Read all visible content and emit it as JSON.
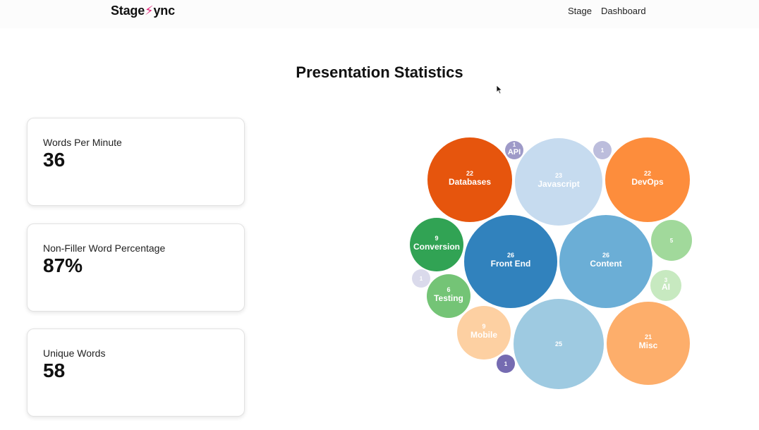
{
  "nav": {
    "logo_prefix": "Stage",
    "logo_suffix": "ync",
    "links": [
      "Stage",
      "Dashboard"
    ]
  },
  "page_title": "Presentation Statistics",
  "stats": [
    {
      "label": "Words Per Minute",
      "value": "36"
    },
    {
      "label": "Non-Filler Word Percentage",
      "value": "87%"
    },
    {
      "label": "Unique Words",
      "value": "58"
    }
  ],
  "chart_data": {
    "type": "bubble",
    "bubbles": [
      {
        "name": "Databases",
        "value": 22,
        "color": "#e6550d"
      },
      {
        "name": "API",
        "value": 1,
        "color": "#9e9ac8"
      },
      {
        "name": "Javascript",
        "value": 23,
        "color": "#c6dbef"
      },
      {
        "name": "",
        "value": 1,
        "color": "#bcbddc"
      },
      {
        "name": "DevOps",
        "value": 22,
        "color": "#fd8d3c"
      },
      {
        "name": "Conversion",
        "value": 9,
        "color": "#31a354"
      },
      {
        "name": "Front End",
        "value": 26,
        "color": "#3182bd"
      },
      {
        "name": "Content",
        "value": 26,
        "color": "#6baed6"
      },
      {
        "name": "",
        "value": 5,
        "color": "#a1d99b"
      },
      {
        "name": "",
        "value": 1,
        "color": "#dadaeb"
      },
      {
        "name": "Testing",
        "value": 6,
        "color": "#74c476"
      },
      {
        "name": "AI",
        "value": 3,
        "color": "#c7e9c0"
      },
      {
        "name": "Mobile",
        "value": 9,
        "color": "#fdd0a2"
      },
      {
        "name": "",
        "value": 25,
        "color": "#9ecae1"
      },
      {
        "name": "Misc",
        "value": 21,
        "color": "#fdae6b"
      },
      {
        "name": "",
        "value": 1,
        "color": "#756bb1"
      }
    ]
  }
}
